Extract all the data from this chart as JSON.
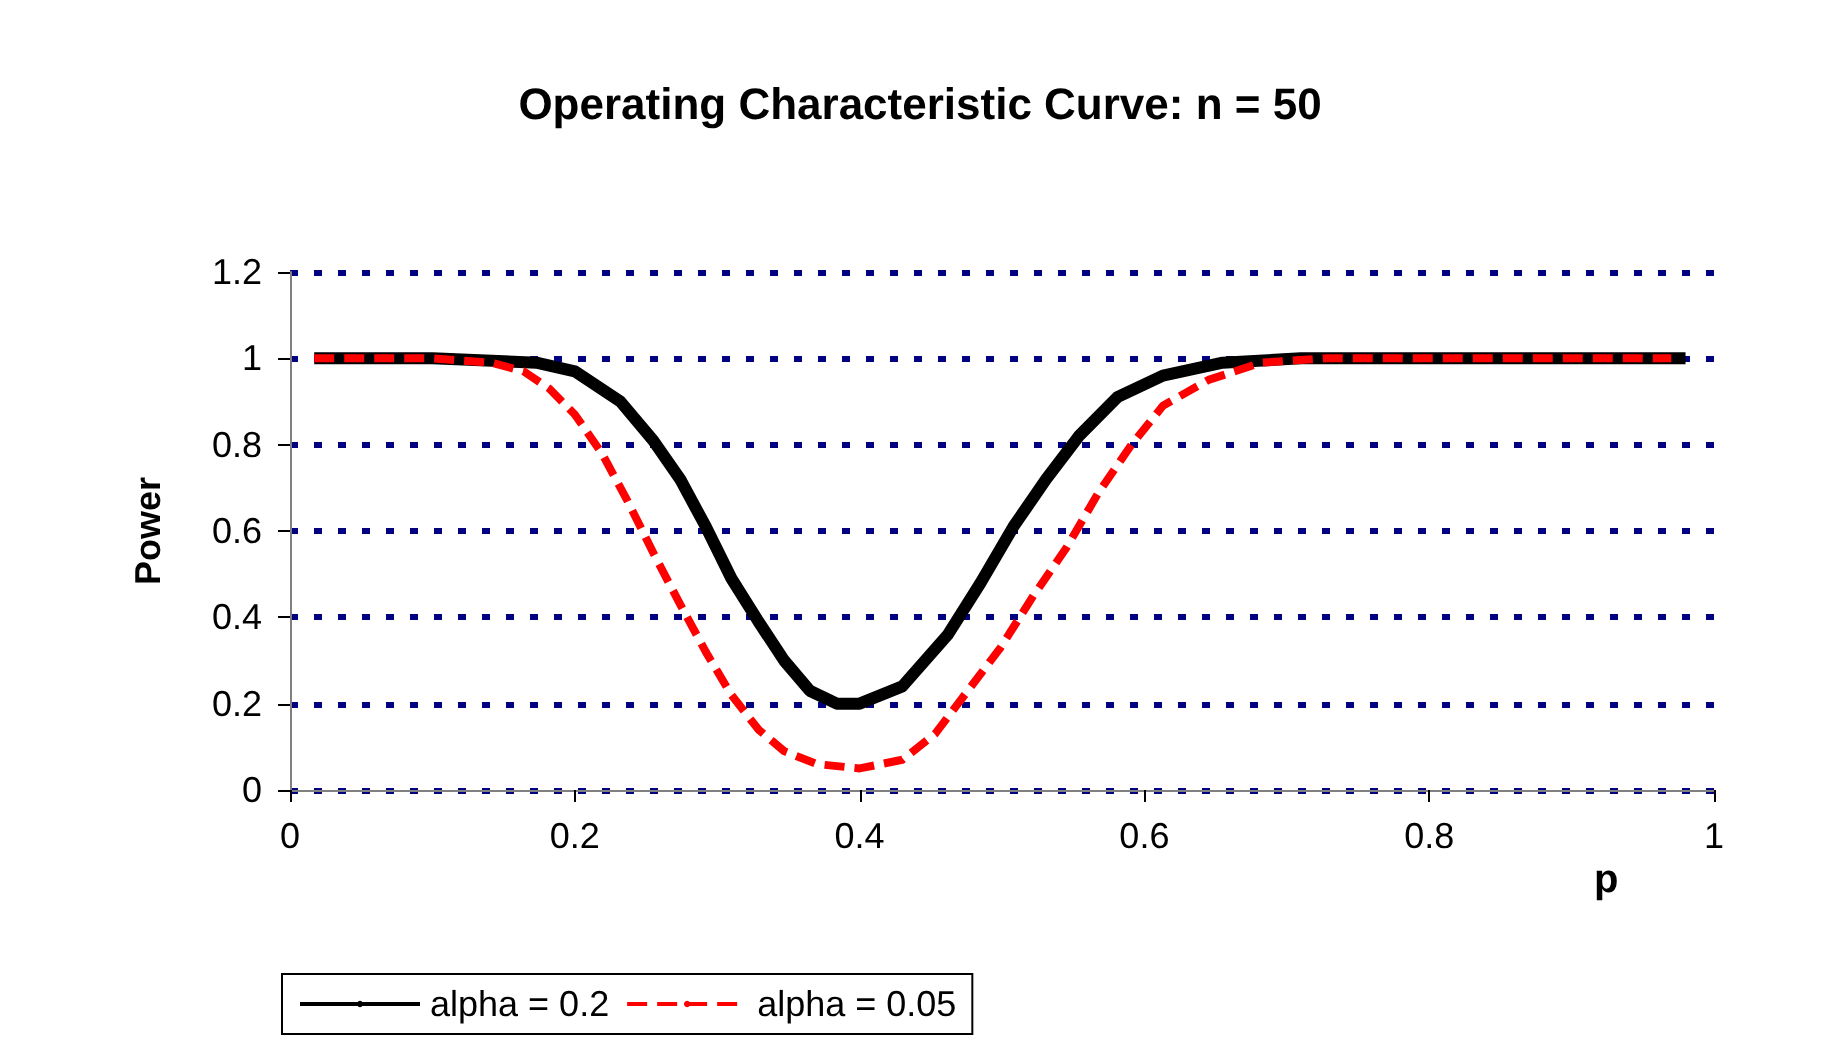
{
  "chart_data": {
    "type": "line",
    "title": "Operating Characteristic Curve: n = 50",
    "xlabel": "p",
    "ylabel": "Power",
    "xlim": [
      0,
      1
    ],
    "xticks": [
      0,
      0.2,
      0.4,
      0.6,
      0.8,
      1
    ],
    "ylim": [
      0,
      1.2
    ],
    "yticks": [
      0,
      0.2,
      0.4,
      0.6,
      0.8,
      1,
      1.2
    ],
    "grid": "y",
    "legend": "bottom",
    "marker": "none",
    "series": [
      {
        "name": "alpha = 0.2",
        "color": "#000000",
        "line_style": "solid",
        "x": [
          0.017,
          0.1,
          0.173,
          0.2,
          0.232,
          0.255,
          0.274,
          0.292,
          0.31,
          0.329,
          0.347,
          0.365,
          0.384,
          0.4,
          0.43,
          0.462,
          0.485,
          0.508,
          0.531,
          0.554,
          0.581,
          0.613,
          0.655,
          0.71,
          0.8,
          0.98
        ],
        "values": [
          1,
          1,
          0.99,
          0.97,
          0.9,
          0.81,
          0.72,
          0.61,
          0.49,
          0.39,
          0.3,
          0.23,
          0.2,
          0.2,
          0.24,
          0.36,
          0.48,
          0.61,
          0.72,
          0.82,
          0.91,
          0.96,
          0.99,
          1,
          1,
          1
        ]
      },
      {
        "name": "alpha = 0.05",
        "color": "#ff0000",
        "line_style": "dashed",
        "x": [
          0.017,
          0.1,
          0.141,
          0.164,
          0.182,
          0.2,
          0.219,
          0.237,
          0.255,
          0.274,
          0.292,
          0.31,
          0.329,
          0.347,
          0.37,
          0.4,
          0.43,
          0.453,
          0.476,
          0.499,
          0.522,
          0.545,
          0.568,
          0.591,
          0.613,
          0.645,
          0.682,
          0.728,
          0.85,
          0.97
        ],
        "values": [
          1,
          1,
          0.99,
          0.97,
          0.93,
          0.87,
          0.78,
          0.67,
          0.55,
          0.43,
          0.32,
          0.22,
          0.14,
          0.09,
          0.06,
          0.05,
          0.07,
          0.13,
          0.23,
          0.33,
          0.45,
          0.56,
          0.69,
          0.8,
          0.89,
          0.95,
          0.99,
          1,
          1,
          1
        ]
      }
    ]
  }
}
